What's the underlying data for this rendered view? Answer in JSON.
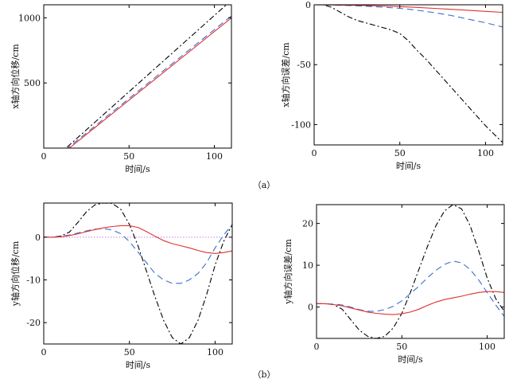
{
  "figure": {
    "caption_a": "（a）",
    "caption_b": "（b）"
  },
  "styles": {
    "ref": {
      "color": "#000000",
      "dash": "7,3,2,3",
      "width": 1.1
    },
    "m1": {
      "color": "#3a6fc9",
      "dash": "8,5",
      "width": 1.1
    },
    "m2": {
      "color": "#e03030",
      "dash": "",
      "width": 1.1
    },
    "zero": {
      "color": "#c070d8",
      "dash": "1.5,2",
      "width": 0.9
    }
  },
  "chart_data": [
    {
      "id": "a-left",
      "type": "line",
      "xlabel": "时间/s",
      "ylabel": "x轴方向位移/cm",
      "xlim": [
        0,
        110
      ],
      "ylim": [
        0,
        1100
      ],
      "xticks": [
        0,
        50,
        100
      ],
      "yticks": [
        500,
        1000
      ],
      "grid": false,
      "series": [
        {
          "style": "ref",
          "x": [
            0,
            13,
            110
          ],
          "y": [
            0,
            0,
            1135
          ]
        },
        {
          "style": "m1",
          "x": [
            0,
            14,
            110
          ],
          "y": [
            0,
            0,
            1015
          ]
        },
        {
          "style": "m2",
          "x": [
            0,
            15,
            110
          ],
          "y": [
            0,
            0,
            1000
          ]
        }
      ]
    },
    {
      "id": "a-right",
      "type": "line",
      "xlabel": "时间/s",
      "ylabel": "x轴方向误差/cm",
      "xlim": [
        0,
        110
      ],
      "ylim": [
        -117,
        0
      ],
      "xticks": [
        0,
        50,
        100
      ],
      "yticks": [
        -100,
        -50,
        0
      ],
      "grid": false,
      "series": [
        {
          "style": "ref",
          "x": [
            0,
            5,
            10,
            15,
            20,
            25,
            30,
            35,
            40,
            45,
            50,
            55,
            60,
            65,
            70,
            75,
            80,
            85,
            90,
            95,
            100,
            105,
            110
          ],
          "y": [
            0,
            0,
            -2,
            -6,
            -10,
            -13,
            -15,
            -17,
            -19,
            -21,
            -24,
            -30,
            -38,
            -45,
            -53,
            -61,
            -69,
            -77,
            -85,
            -93,
            -101,
            -108,
            -115
          ]
        },
        {
          "style": "m1",
          "x": [
            0,
            10,
            20,
            30,
            40,
            50,
            60,
            70,
            80,
            90,
            100,
            110
          ],
          "y": [
            0,
            -0.2,
            -0.6,
            -1.2,
            -2,
            -3,
            -4.5,
            -6.5,
            -9,
            -12,
            -15,
            -18.5
          ]
        },
        {
          "style": "m2",
          "x": [
            0,
            10,
            20,
            30,
            40,
            50,
            60,
            70,
            80,
            90,
            100,
            110
          ],
          "y": [
            0,
            -0.1,
            -0.3,
            -0.6,
            -1,
            -1.5,
            -2.2,
            -3,
            -3.8,
            -4.6,
            -5.5,
            -6.3
          ]
        }
      ]
    },
    {
      "id": "b-left",
      "type": "line",
      "xlabel": "时间/s",
      "ylabel": "y轴方向位移/cm",
      "xlim": [
        0,
        110
      ],
      "ylim": [
        -25,
        8
      ],
      "xticks": [
        0,
        50,
        100
      ],
      "yticks": [
        -20,
        -10,
        0
      ],
      "grid": false,
      "series": [
        {
          "style": "zero",
          "x": [
            0,
            110
          ],
          "y": [
            0,
            0
          ]
        },
        {
          "style": "ref",
          "x": [
            0,
            5,
            10,
            15,
            20,
            25,
            30,
            35,
            40,
            45,
            50,
            55,
            60,
            65,
            70,
            75,
            80,
            85,
            90,
            95,
            100,
            105,
            110
          ],
          "y": [
            0,
            0,
            0.3,
            1.2,
            3.5,
            6,
            7.6,
            8,
            7.9,
            6.5,
            3,
            -2,
            -8,
            -14,
            -19.5,
            -23.5,
            -25,
            -23.5,
            -19.5,
            -13.5,
            -6.5,
            -1,
            3
          ]
        },
        {
          "style": "m1",
          "x": [
            0,
            5,
            10,
            15,
            20,
            25,
            30,
            35,
            40,
            45,
            50,
            55,
            60,
            65,
            70,
            75,
            80,
            85,
            90,
            95,
            100,
            105,
            110
          ],
          "y": [
            0,
            0,
            0.2,
            0.5,
            1,
            1.5,
            1.9,
            2,
            1.7,
            0.8,
            -1,
            -3.5,
            -6,
            -8.5,
            -10,
            -10.8,
            -10.8,
            -10,
            -8.5,
            -6,
            -2.5,
            0.5,
            3
          ]
        },
        {
          "style": "m2",
          "x": [
            0,
            5,
            10,
            15,
            20,
            25,
            30,
            35,
            40,
            45,
            50,
            55,
            60,
            65,
            70,
            75,
            80,
            85,
            90,
            95,
            100,
            105,
            110
          ],
          "y": [
            0,
            0,
            0.1,
            0.4,
            0.8,
            1.3,
            1.8,
            2.2,
            2.5,
            2.7,
            2.7,
            2.3,
            1.3,
            0.2,
            -0.8,
            -1.5,
            -2,
            -2.5,
            -3.1,
            -3.6,
            -3.8,
            -3.6,
            -3.2
          ]
        }
      ]
    },
    {
      "id": "b-right",
      "type": "line",
      "xlabel": "时间/s",
      "ylabel": "y轴方向误差/cm",
      "xlim": [
        0,
        110
      ],
      "ylim": [
        -7.5,
        24.5
      ],
      "xticks": [
        0,
        50,
        100
      ],
      "yticks": [
        0,
        10,
        20
      ],
      "grid": false,
      "series": [
        {
          "style": "ref",
          "x": [
            0,
            5,
            10,
            15,
            20,
            25,
            30,
            35,
            40,
            45,
            50,
            55,
            60,
            65,
            70,
            75,
            80,
            85,
            90,
            95,
            100,
            105,
            110
          ],
          "y": [
            0.8,
            0.8,
            0.6,
            -0.5,
            -3,
            -5.5,
            -7,
            -7.5,
            -7,
            -5,
            -1.5,
            3.5,
            9,
            14.5,
            19.5,
            23,
            24.5,
            23.5,
            19.5,
            13.5,
            7,
            2,
            -1
          ]
        },
        {
          "style": "m1",
          "x": [
            0,
            5,
            10,
            15,
            20,
            25,
            30,
            35,
            40,
            45,
            50,
            55,
            60,
            65,
            70,
            75,
            80,
            85,
            90,
            95,
            100,
            105,
            110
          ],
          "y": [
            0.8,
            0.8,
            0.7,
            0.5,
            0,
            -0.6,
            -1,
            -1,
            -0.6,
            0.2,
            1.5,
            3.2,
            5,
            7,
            8.8,
            10.2,
            11,
            10.6,
            9,
            6.5,
            3.5,
            0.5,
            -2.2
          ]
        },
        {
          "style": "m2",
          "x": [
            0,
            5,
            10,
            15,
            20,
            25,
            30,
            35,
            40,
            45,
            50,
            55,
            60,
            65,
            70,
            75,
            80,
            85,
            90,
            95,
            100,
            105,
            110
          ],
          "y": [
            0.8,
            0.8,
            0.6,
            0.3,
            -0.2,
            -0.7,
            -1.2,
            -1.5,
            -1.7,
            -1.8,
            -1.6,
            -1.2,
            -0.5,
            0.4,
            1.2,
            1.8,
            2.2,
            2.6,
            3.1,
            3.5,
            3.7,
            3.7,
            3.5
          ]
        }
      ]
    }
  ]
}
